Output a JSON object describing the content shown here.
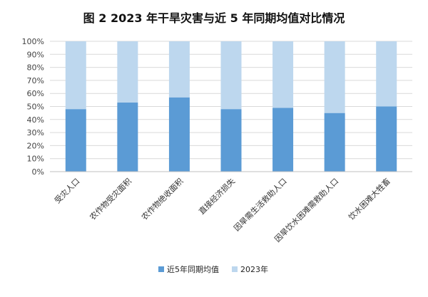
{
  "chart_data": {
    "type": "bar",
    "stacked": "percent",
    "title": "图 2  2023 年干旱灾害与近 5 年同期均值对比情况",
    "categories": [
      "受灾人口",
      "农作物受灾面积",
      "农作物绝收面积",
      "直接经济损失",
      "因旱需生活救助人口",
      "因旱饮水困难需救助人口",
      "饮水困难大牲畜"
    ],
    "series": [
      {
        "name": "近5年同期均值",
        "color": "#5b9bd5",
        "values": [
          48,
          53,
          57,
          48,
          49,
          45,
          50
        ]
      },
      {
        "name": "2023年",
        "color": "#bdd7ee",
        "values": [
          52,
          47,
          43,
          52,
          51,
          55,
          50
        ]
      }
    ],
    "yticks": [
      "0%",
      "10%",
      "20%",
      "30%",
      "40%",
      "50%",
      "60%",
      "70%",
      "80%",
      "90%",
      "100%"
    ],
    "ylim": [
      0,
      100
    ],
    "grid": true,
    "legend_position": "bottom"
  }
}
